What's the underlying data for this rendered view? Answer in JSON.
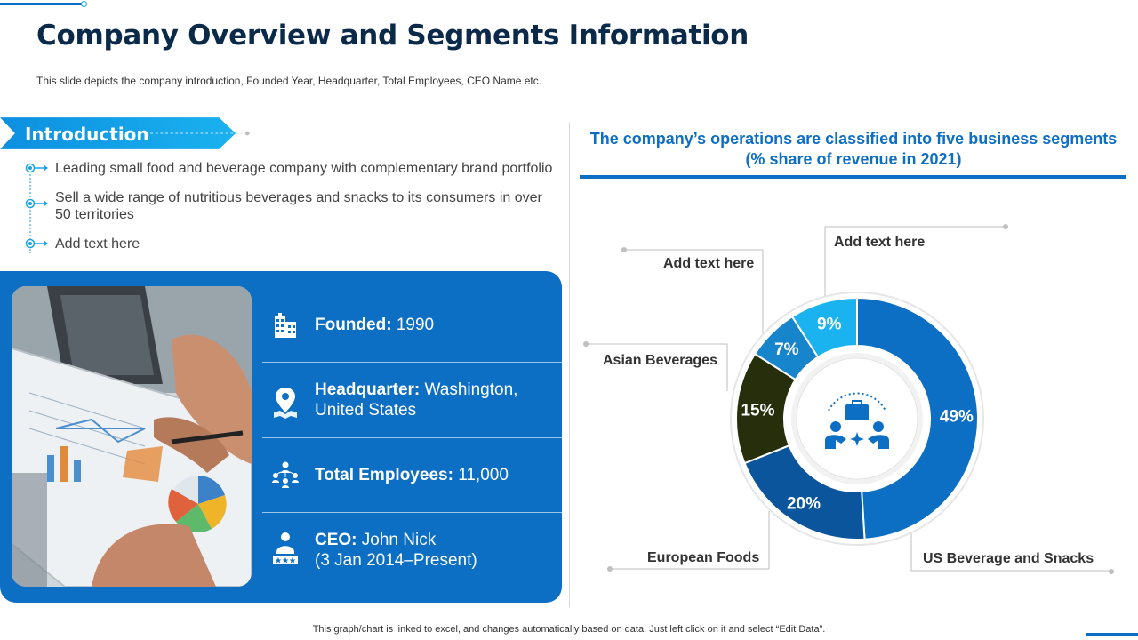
{
  "header": {
    "title": "Company Overview and Segments Information",
    "subtitle": "This slide depicts the company introduction, Founded Year, Headquarter, Total Employees, CEO Name etc."
  },
  "introduction": {
    "label": "Introduction",
    "bullets": [
      "Leading small food and beverage company with complementary brand portfolio",
      "Sell a wide range of nutritious beverages and snacks to its consumers in over 50 territories",
      "Add text here"
    ]
  },
  "info": {
    "founded_label": "Founded:",
    "founded_value": "1990",
    "hq_label": "Headquarter:",
    "hq_value_1": "Washington,",
    "hq_value_2": "United States",
    "employees_label": "Total Employees:",
    "employees_value": "11,000",
    "ceo_label": "CEO:",
    "ceo_value_1": "John Nick",
    "ceo_value_2": "(3 Jan 2014–Present)"
  },
  "chart_title": "The company’s operations are classified into five business segments (% share of revenue in 2021)",
  "footer": "This graph/chart is linked to excel, and changes automatically based on data. Just left click on it and select “Edit Data”.",
  "colors": {
    "primary": "#0d6fc4",
    "accent": "#1aa3e8",
    "dark_navy": "#0b2a4a"
  },
  "chart_data": {
    "type": "pie",
    "title": "The company’s operations are classified into five business segments (% share of revenue in 2021)",
    "slices": [
      {
        "label": "US Beverage and Snacks",
        "value": 49,
        "display": "49%",
        "color": "#0d6fc4"
      },
      {
        "label": "European Foods",
        "value": 20,
        "display": "20%",
        "color": "#0a559b"
      },
      {
        "label": "Asian Beverages",
        "value": 15,
        "display": "15%",
        "color": "#262e0c"
      },
      {
        "label": "Add text here",
        "value": 7,
        "display": "7%",
        "color": "#1685cc"
      },
      {
        "label": "Add text here",
        "value": 9,
        "display": "9%",
        "color": "#1ab2ef"
      }
    ]
  }
}
